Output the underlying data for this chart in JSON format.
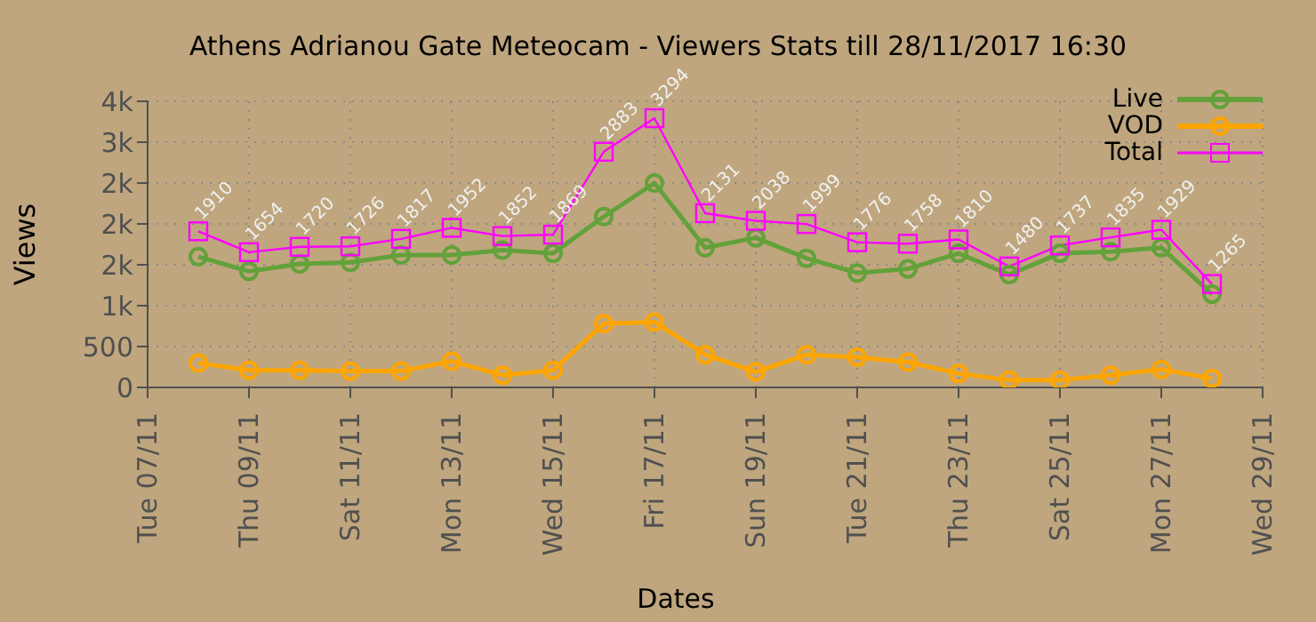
{
  "chart_data": {
    "type": "line",
    "title": "Athens Adrianou Gate Meteocam - Viewers Stats till 28/11/2017 16:30",
    "xlabel": "Dates",
    "ylabel": "Views",
    "x": [
      "2017-11-08",
      "2017-11-09",
      "2017-11-10",
      "2017-11-11",
      "2017-11-12",
      "2017-11-13",
      "2017-11-14",
      "2017-11-15",
      "2017-11-16",
      "2017-11-17",
      "2017-11-18",
      "2017-11-19",
      "2017-11-20",
      "2017-11-21",
      "2017-11-22",
      "2017-11-23",
      "2017-11-24",
      "2017-11-25",
      "2017-11-26",
      "2017-11-27",
      "2017-11-28"
    ],
    "series": [
      {
        "name": "Live",
        "color": "#63a13a",
        "marker": "circle",
        "values": [
          1600,
          1420,
          1510,
          1530,
          1620,
          1620,
          1680,
          1640,
          2090,
          2500,
          1710,
          1830,
          1580,
          1400,
          1450,
          1640,
          1380,
          1640,
          1660,
          1710,
          1140
        ]
      },
      {
        "name": "VOD",
        "color": "#ffa500",
        "marker": "circle",
        "values": [
          300,
          210,
          210,
          200,
          200,
          320,
          150,
          210,
          780,
          800,
          400,
          190,
          400,
          370,
          310,
          170,
          90,
          90,
          150,
          220,
          110
        ]
      },
      {
        "name": "Total",
        "color": "#ff00ff",
        "marker": "square",
        "values": [
          1910,
          1654,
          1720,
          1726,
          1817,
          1952,
          1852,
          1869,
          2883,
          3294,
          2131,
          2038,
          1999,
          1776,
          1758,
          1810,
          1480,
          1737,
          1835,
          1929,
          1265
        ],
        "value_labels": [
          "1910",
          "1654",
          "1720",
          "1726",
          "1817",
          "1952",
          "1852",
          "1869",
          "2883",
          "3294",
          "2131",
          "2038",
          "1999",
          "1776",
          "1758",
          "1810",
          "1480",
          "1737",
          "1835",
          "1929",
          "1265"
        ]
      }
    ],
    "xlim": [
      "2017-11-07",
      "2017-11-29"
    ],
    "xticks": [
      {
        "value": "2017-11-07",
        "label": "Tue 07/11"
      },
      {
        "value": "2017-11-09",
        "label": "Thu 09/11"
      },
      {
        "value": "2017-11-11",
        "label": "Sat 11/11"
      },
      {
        "value": "2017-11-13",
        "label": "Mon 13/11"
      },
      {
        "value": "2017-11-15",
        "label": "Wed 15/11"
      },
      {
        "value": "2017-11-17",
        "label": "Fri 17/11"
      },
      {
        "value": "2017-11-19",
        "label": "Sun 19/11"
      },
      {
        "value": "2017-11-21",
        "label": "Tue 21/11"
      },
      {
        "value": "2017-11-23",
        "label": "Thu 23/11"
      },
      {
        "value": "2017-11-25",
        "label": "Sat 25/11"
      },
      {
        "value": "2017-11-27",
        "label": "Mon 27/11"
      },
      {
        "value": "2017-11-29",
        "label": "Wed 29/11"
      }
    ],
    "ylim": [
      0,
      3500
    ],
    "yticks": [
      0,
      500,
      {
        "value": 1000,
        "label": "1k"
      },
      {
        "value": 1500,
        "label": "2k"
      },
      {
        "value": 2000,
        "label": "2k"
      },
      {
        "value": 2500,
        "label": "2k"
      },
      {
        "value": 3000,
        "label": "3k"
      },
      {
        "value": 3500,
        "label": "4k"
      }
    ],
    "grid": true,
    "legend": "top right",
    "line_style": "solid"
  }
}
